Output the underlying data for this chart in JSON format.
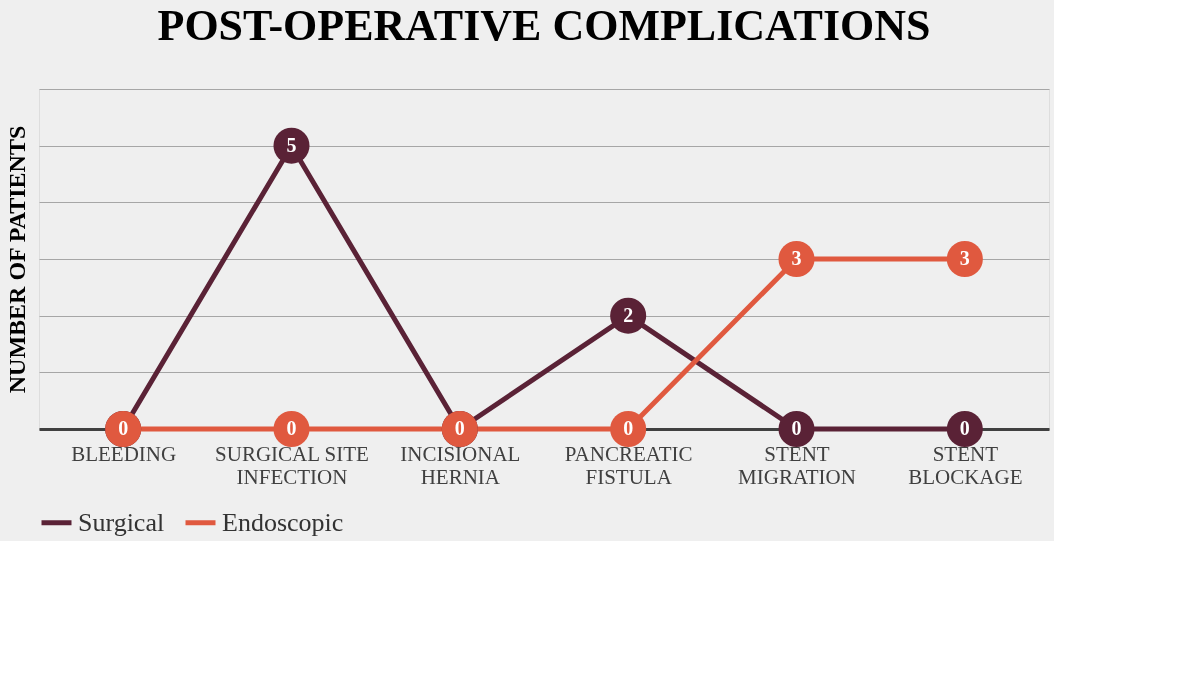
{
  "chart_data": {
    "type": "line",
    "title": "POST-OPERATIVE COMPLICATIONS",
    "ylabel": "NUMBER OF PATIENTS",
    "categories": [
      "BLEEDING",
      "SURGICAL SITE INFECTION",
      "INCISIONAL HERNIA",
      "PANCREATIC FISTULA",
      "STENT MIGRATION",
      "STENT BLOCKAGE"
    ],
    "series": [
      {
        "name": "Surgical",
        "color": "#5a2236",
        "values": [
          0,
          5,
          0,
          2,
          0,
          0
        ],
        "value_labels": [
          null,
          "5",
          null,
          "2",
          "0",
          "0"
        ]
      },
      {
        "name": "Endoscopic",
        "color": "#e0593f",
        "values": [
          0,
          0,
          0,
          0,
          3,
          3
        ],
        "value_labels": [
          "0",
          "0",
          "0",
          "0",
          "3",
          "3"
        ]
      }
    ],
    "ylim": [
      0,
      6
    ],
    "yticks": [
      {
        "value": 0,
        "label": null
      },
      {
        "value": 1,
        "label": null
      },
      {
        "value": 2,
        "label": null
      },
      {
        "value": 3,
        "label": null
      },
      {
        "value": 4,
        "label": null
      },
      {
        "value": 5,
        "label": null
      },
      {
        "value": 6,
        "label": null
      }
    ],
    "tick_labels": "x",
    "grid": "y",
    "legend": "bottom",
    "marker": "circle",
    "line_style": "solid"
  }
}
